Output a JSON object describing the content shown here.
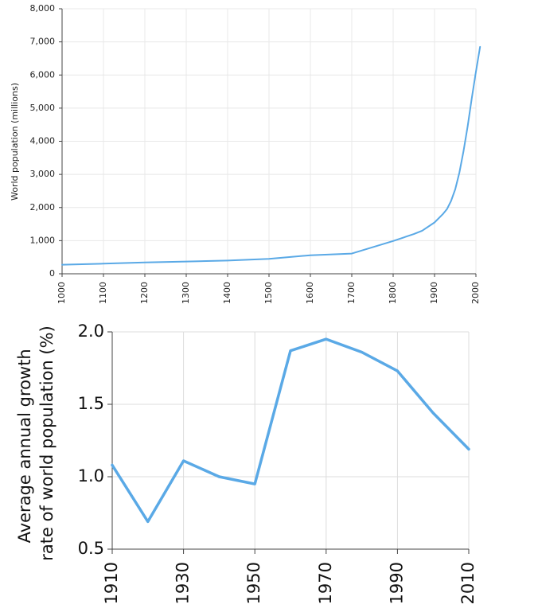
{
  "chart_data": [
    {
      "type": "line",
      "title": "",
      "xlabel": "",
      "ylabel": "World population (millions)",
      "xlim": [
        1000,
        2000
      ],
      "ylim": [
        0,
        8000
      ],
      "x_ticks": [
        1000,
        1100,
        1200,
        1300,
        1400,
        1500,
        1600,
        1700,
        1800,
        1900,
        2000
      ],
      "y_ticks": [
        0,
        1000,
        2000,
        3000,
        4000,
        5000,
        6000,
        7000,
        8000
      ],
      "x_tick_labels": [
        "1000",
        "1100",
        "1200",
        "1300",
        "1400",
        "1500",
        "1600",
        "1700",
        "1800",
        "1900",
        "2000"
      ],
      "y_tick_labels": [
        "0",
        "1,000",
        "2,000",
        "3,000",
        "4,000",
        "5,000",
        "6,000",
        "7,000",
        "8,000"
      ],
      "grid": true,
      "color": "#5aa9e6",
      "series": [
        {
          "x": [
            1000,
            1100,
            1200,
            1300,
            1400,
            1500,
            1600,
            1700,
            1750,
            1800,
            1850,
            1870,
            1900,
            1920,
            1930,
            1940,
            1950,
            1960,
            1970,
            1980,
            1990,
            2000,
            2010
          ],
          "values": [
            275,
            305,
            340,
            370,
            400,
            450,
            560,
            610,
            800,
            990,
            1200,
            1300,
            1550,
            1800,
            1950,
            2200,
            2550,
            3050,
            3700,
            4450,
            5300,
            6100,
            6850
          ]
        }
      ]
    },
    {
      "type": "line",
      "title": "",
      "xlabel": "",
      "ylabel": "Average annual growth\nrate of world population (%)",
      "xlim": [
        1910,
        2010
      ],
      "ylim": [
        0.5,
        2.0
      ],
      "x_ticks": [
        1910,
        1930,
        1950,
        1970,
        1990,
        2010
      ],
      "y_ticks": [
        0.5,
        1.0,
        1.5,
        2.0
      ],
      "x_tick_labels": [
        "1910",
        "1930",
        "1950",
        "1970",
        "1990",
        "2010"
      ],
      "y_tick_labels": [
        "0.5",
        "1.0",
        "1.5",
        "2.0"
      ],
      "grid": true,
      "color": "#5aa9e6",
      "series": [
        {
          "x": [
            1910,
            1920,
            1930,
            1940,
            1950,
            1960,
            1970,
            1980,
            1990,
            2000,
            2010
          ],
          "values": [
            1.08,
            0.69,
            1.11,
            1.0,
            0.95,
            1.87,
            1.95,
            1.86,
            1.73,
            1.44,
            1.19
          ]
        }
      ]
    }
  ]
}
